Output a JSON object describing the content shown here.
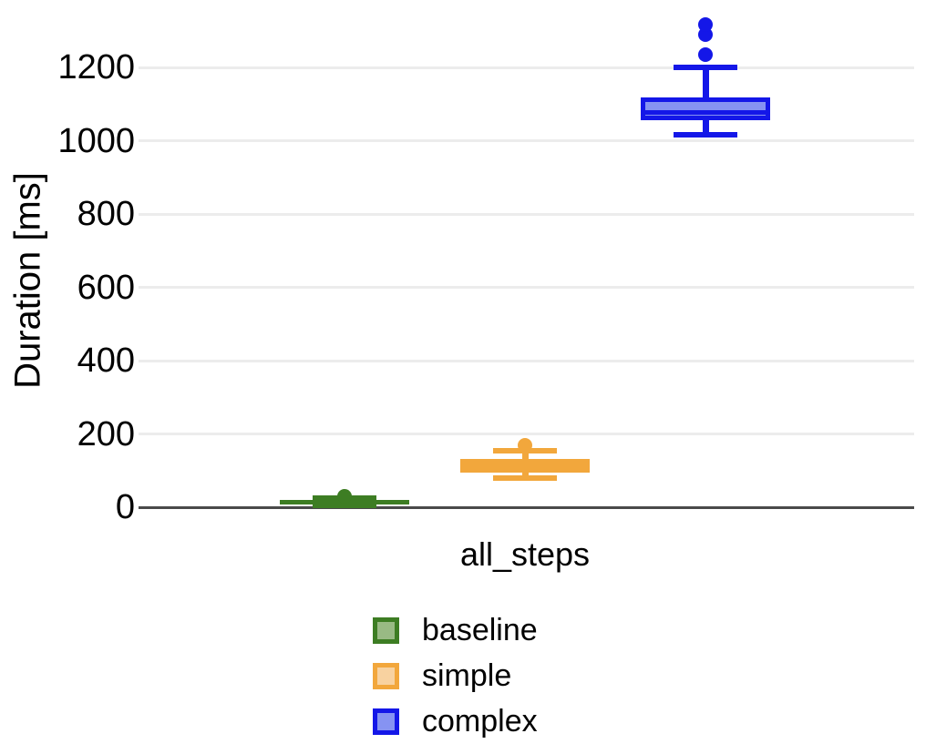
{
  "chart_data": {
    "type": "boxplot",
    "title": "",
    "xlabel": "",
    "ylabel": "Duration [ms]",
    "categories": [
      "all_steps"
    ],
    "y_ticks": [
      0,
      200,
      400,
      600,
      800,
      1000,
      1200
    ],
    "ylim": [
      0,
      1385
    ],
    "grid": true,
    "legend_position": "bottom-center",
    "orientation": "vertical",
    "unit": "ms",
    "series": [
      {
        "name": "baseline",
        "stroke": "#3d7d23",
        "fill": "#99ba84",
        "box": {
          "min": 5,
          "q1": 8,
          "median": 14,
          "q3": 21,
          "max": 26
        },
        "outliers": [
          31
        ]
      },
      {
        "name": "simple",
        "stroke": "#f2a73c",
        "fill": "#f8d2a0",
        "box": {
          "min": 80,
          "q1": 95,
          "median": 112,
          "q3": 131,
          "max": 155
        },
        "outliers": [
          170
        ]
      },
      {
        "name": "complex",
        "stroke": "#1417e8",
        "fill": "#8693f2",
        "box": {
          "min": 1015,
          "q1": 1055,
          "median": 1078,
          "q3": 1118,
          "max": 1200
        },
        "outliers": [
          1235,
          1290,
          1317
        ]
      }
    ]
  },
  "colors": {
    "gridline": "#ececec",
    "zero_axis": "#4a4a4a",
    "text": "#000000",
    "background": "#ffffff"
  }
}
